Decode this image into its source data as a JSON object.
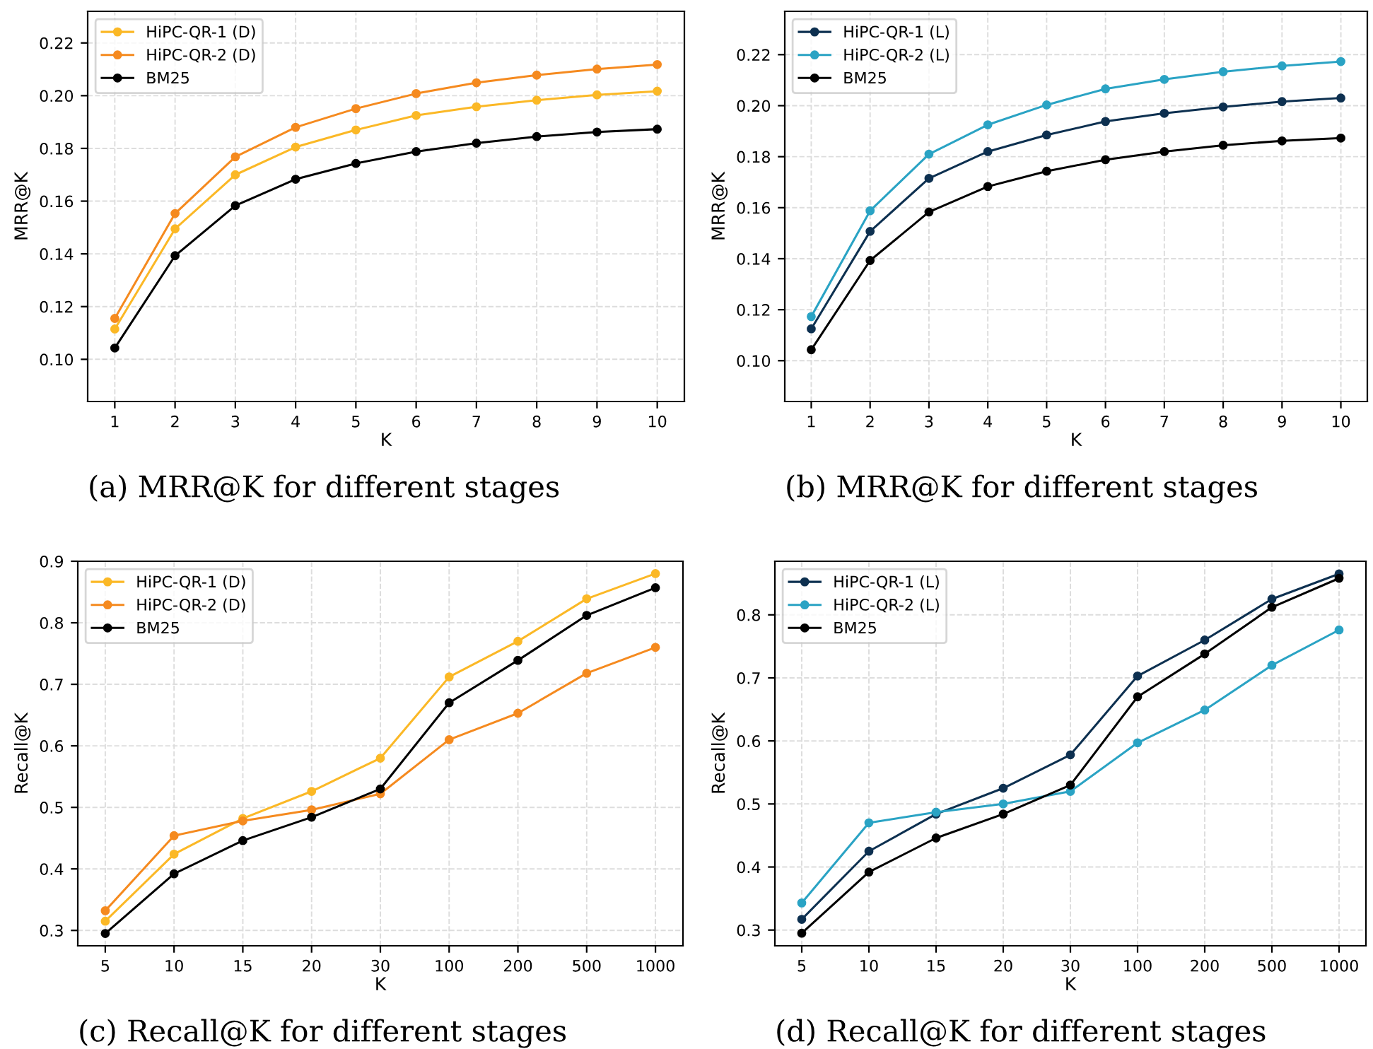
{
  "chart_data": [
    {
      "type": "line",
      "title": "(a) MRR@K for different stages",
      "xlabel": "K",
      "ylabel": "MRR@K",
      "x": [
        1,
        2,
        3,
        4,
        5,
        6,
        7,
        8,
        9,
        10
      ],
      "xlim": [
        0.55,
        10.45
      ],
      "xticks": [
        1,
        2,
        3,
        4,
        5,
        6,
        7,
        8,
        9,
        10
      ],
      "ylim": [
        0.084,
        0.232
      ],
      "yticks": [
        {
          "value": 0.1,
          "label": "0.10"
        },
        {
          "value": 0.12,
          "label": "0.12"
        },
        {
          "value": 0.14,
          "label": "0.14"
        },
        {
          "value": 0.16,
          "label": "0.16"
        },
        {
          "value": 0.18,
          "label": "0.18"
        },
        {
          "value": 0.2,
          "label": "0.20"
        },
        {
          "value": 0.22,
          "label": "0.22"
        }
      ],
      "grid": true,
      "legend": "top left",
      "marker": "circle",
      "line_style": "solid",
      "series": [
        {
          "name": "HiPC-QR-1 (D)",
          "color": "#fbb826",
          "values": [
            0.1115,
            0.1495,
            0.17,
            0.1805,
            0.187,
            0.1925,
            0.1958,
            0.1983,
            0.2003,
            0.2017
          ]
        },
        {
          "name": "HiPC-QR-2 (D)",
          "color": "#f58a1f",
          "values": [
            0.1155,
            0.1553,
            0.1768,
            0.188,
            0.1951,
            0.2008,
            0.2049,
            0.2078,
            0.2101,
            0.2118
          ]
        },
        {
          "name": "BM25",
          "color": "#000000",
          "values": [
            0.1043,
            0.1393,
            0.1583,
            0.1683,
            0.1743,
            0.1788,
            0.182,
            0.1845,
            0.1862,
            0.1873
          ]
        }
      ]
    },
    {
      "type": "line",
      "title": "(b) MRR@K for different stages",
      "xlabel": "K",
      "ylabel": "MRR@K",
      "x": [
        1,
        2,
        3,
        4,
        5,
        6,
        7,
        8,
        9,
        10
      ],
      "xlim": [
        0.55,
        10.45
      ],
      "xticks": [
        1,
        2,
        3,
        4,
        5,
        6,
        7,
        8,
        9,
        10
      ],
      "ylim": [
        0.084,
        0.237
      ],
      "yticks": [
        {
          "value": 0.1,
          "label": "0.10"
        },
        {
          "value": 0.12,
          "label": "0.12"
        },
        {
          "value": 0.14,
          "label": "0.14"
        },
        {
          "value": 0.16,
          "label": "0.16"
        },
        {
          "value": 0.18,
          "label": "0.18"
        },
        {
          "value": 0.2,
          "label": "0.20"
        },
        {
          "value": 0.22,
          "label": "0.22"
        }
      ],
      "grid": true,
      "legend": "top left",
      "marker": "circle",
      "line_style": "solid",
      "series": [
        {
          "name": "HiPC-QR-1 (L)",
          "color": "#0d3050",
          "values": [
            0.1125,
            0.1507,
            0.1715,
            0.182,
            0.1885,
            0.1938,
            0.197,
            0.1995,
            0.2016,
            0.203
          ]
        },
        {
          "name": "HiPC-QR-2 (L)",
          "color": "#2aa3c4",
          "values": [
            0.1173,
            0.1588,
            0.181,
            0.1925,
            0.2003,
            0.2066,
            0.2103,
            0.2133,
            0.2156,
            0.2173
          ]
        },
        {
          "name": "BM25",
          "color": "#000000",
          "values": [
            0.1043,
            0.1393,
            0.1583,
            0.1683,
            0.1743,
            0.1788,
            0.182,
            0.1845,
            0.1862,
            0.1873
          ]
        }
      ]
    },
    {
      "type": "line",
      "title": "(c) Recall@K for different stages",
      "xlabel": "K",
      "ylabel": "Recall@K",
      "categories": [
        "5",
        "10",
        "15",
        "20",
        "30",
        "100",
        "200",
        "500",
        "1000"
      ],
      "ylim": [
        0.275,
        0.9
      ],
      "yticks": [
        0.3,
        0.4,
        0.5,
        0.6,
        0.7,
        0.8,
        0.9
      ],
      "grid": true,
      "legend": "top left",
      "marker": "circle",
      "line_style": "solid",
      "series": [
        {
          "name": "HiPC-QR-1 (D)",
          "color": "#fbb826",
          "values": [
            0.315,
            0.424,
            0.482,
            0.526,
            0.58,
            0.712,
            0.77,
            0.839,
            0.88
          ]
        },
        {
          "name": "HiPC-QR-2 (D)",
          "color": "#f58a1f",
          "values": [
            0.332,
            0.454,
            0.478,
            0.496,
            0.522,
            0.61,
            0.653,
            0.718,
            0.76
          ]
        },
        {
          "name": "BM25",
          "color": "#000000",
          "values": [
            0.295,
            0.392,
            0.446,
            0.484,
            0.53,
            0.67,
            0.739,
            0.812,
            0.857
          ]
        }
      ]
    },
    {
      "type": "line",
      "title": "(d) Recall@K for different stages",
      "xlabel": "K",
      "ylabel": "Recall@K",
      "categories": [
        "5",
        "10",
        "15",
        "20",
        "30",
        "100",
        "200",
        "500",
        "1000"
      ],
      "ylim": [
        0.275,
        0.885
      ],
      "yticks": [
        0.3,
        0.4,
        0.5,
        0.6,
        0.7,
        0.8
      ],
      "grid": true,
      "legend": "top left",
      "marker": "circle",
      "line_style": "solid",
      "series": [
        {
          "name": "HiPC-QR-1 (L)",
          "color": "#0d3050",
          "values": [
            0.317,
            0.425,
            0.484,
            0.525,
            0.578,
            0.703,
            0.76,
            0.825,
            0.865
          ]
        },
        {
          "name": "HiPC-QR-2 (L)",
          "color": "#2aa3c4",
          "values": [
            0.343,
            0.47,
            0.487,
            0.5,
            0.52,
            0.597,
            0.649,
            0.72,
            0.776
          ]
        },
        {
          "name": "BM25",
          "color": "#000000",
          "values": [
            0.295,
            0.392,
            0.446,
            0.484,
            0.53,
            0.67,
            0.738,
            0.812,
            0.858
          ]
        }
      ]
    }
  ]
}
